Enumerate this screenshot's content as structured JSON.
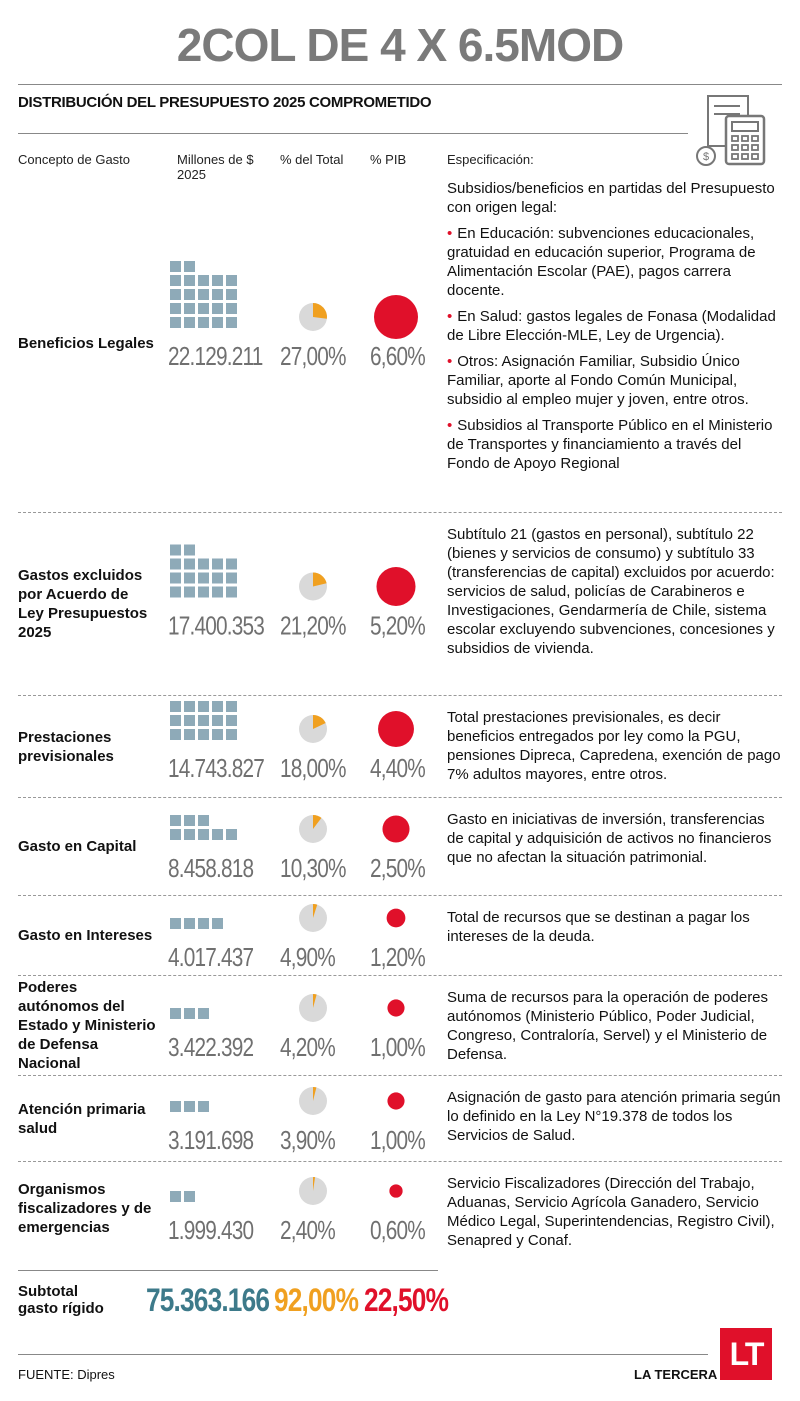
{
  "header": {
    "title": "2COL DE 4 X 6.5MOD",
    "subtitle": "DISTRIBUCIÓN DEL PRESUPUESTO 2025 COMPROMETIDO"
  },
  "columns": {
    "concept": "Concepto de Gasto",
    "amount": "Millones de $ 2025",
    "share": "% del Total",
    "pib": "% PIB",
    "spec": "Especificación:"
  },
  "rows": [
    {
      "concept": "Beneficios Legales",
      "amount": 22129211,
      "amount_label": "22.129.211",
      "share": 27.0,
      "share_label": "27,00%",
      "pib": 6.6,
      "pib_label": "6,60%",
      "spec": "Subsidios/beneficios en partidas del Presupuesto con origen legal:",
      "bullets": [
        "En Educación: subvenciones educacionales, gratuidad en educación superior, Programa de Alimentación Escolar (PAE), pagos carrera docente.",
        "En Salud: gastos legales de Fonasa (Modalidad de Libre Elección-MLE, Ley de Urgencia).",
        "Otros: Asignación Familiar, Subsidio Único Familiar, aporte al Fondo Común Municipal, subsidio al empleo mujer y joven, entre otros.",
        "Subsidios al Transporte Público en el Ministerio de Transportes y financiamiento a través del Fondo de Apoyo Regional"
      ]
    },
    {
      "concept": "Gastos excluidos por Acuerdo de Ley Presupuestos 2025",
      "amount": 17400353,
      "amount_label": "17.400.353",
      "share": 21.2,
      "share_label": "21,20%",
      "pib": 5.2,
      "pib_label": "5,20%",
      "spec": "Subtítulo 21 (gastos en personal), subtítulo 22 (bienes y servicios de consumo) y subtítulo 33 (transferencias de capital) excluidos por acuerdo: servicios de salud, policías de Carabineros e Investigaciones, Gendarmería de Chile, sistema escolar excluyendo subvenciones, concesiones y subsidios de vivienda."
    },
    {
      "concept": "Prestaciones previsionales",
      "amount": 14743827,
      "amount_label": "14.743.827",
      "share": 18.0,
      "share_label": "18,00%",
      "pib": 4.4,
      "pib_label": "4,40%",
      "spec": "Total prestaciones previsionales, es decir beneficios entregados por ley como la PGU, pensiones Dipreca, Capredena, exención de pago 7% adultos mayores, entre otros."
    },
    {
      "concept": "Gasto en Capital",
      "amount": 8458818,
      "amount_label": "8.458.818",
      "share": 10.3,
      "share_label": "10,30%",
      "pib": 2.5,
      "pib_label": "2,50%",
      "spec": "Gasto en iniciativas de inversión, transferencias de capital y adquisición de activos no financieros que no afectan la situación patrimonial."
    },
    {
      "concept": "Gasto en Intereses",
      "amount": 4017437,
      "amount_label": "4.017.437",
      "share": 4.9,
      "share_label": "4,90%",
      "pib": 1.2,
      "pib_label": "1,20%",
      "spec": "Total de recursos que se destinan a pagar los intereses de la deuda."
    },
    {
      "concept": "Poderes autónomos del Estado y Ministerio de Defensa Nacional",
      "amount": 3422392,
      "amount_label": "3.422.392",
      "share": 4.2,
      "share_label": "4,20%",
      "pib": 1.0,
      "pib_label": "1,00%",
      "spec": "Suma de recursos para la operación de poderes autónomos (Ministerio Público, Poder Judicial, Congreso, Contraloría, Servel) y el Ministerio de Defensa."
    },
    {
      "concept": "Atención primaria salud",
      "amount": 3191698,
      "amount_label": "3.191.698",
      "share": 3.9,
      "share_label": "3,90%",
      "pib": 1.0,
      "pib_label": "1,00%",
      "spec": "Asignación de gasto para atención primaria según lo definido en la Ley N°19.378 de todos los Servicios de Salud."
    },
    {
      "concept": "Organismos fiscalizadores y de emergencias",
      "amount": 1999430,
      "amount_label": "1.999.430",
      "share": 2.4,
      "share_label": "2,40%",
      "pib": 0.6,
      "pib_label": "0,60%",
      "spec": "Servicio Fiscalizadores (Dirección del Trabajo, Aduanas, Servicio Agrícola Ganadero, Servicio Médico Legal, Superintendencias, Registro Civil), Senapred y Conaf."
    }
  ],
  "subtotal": {
    "label": "Subtotal gasto rígido",
    "amount": "75.363.166",
    "share": "92,00%",
    "pib": "22,50%"
  },
  "footer": {
    "source": "FUENTE: Dipres",
    "brand": "LA TERCERA",
    "logo": "LT"
  }
}
